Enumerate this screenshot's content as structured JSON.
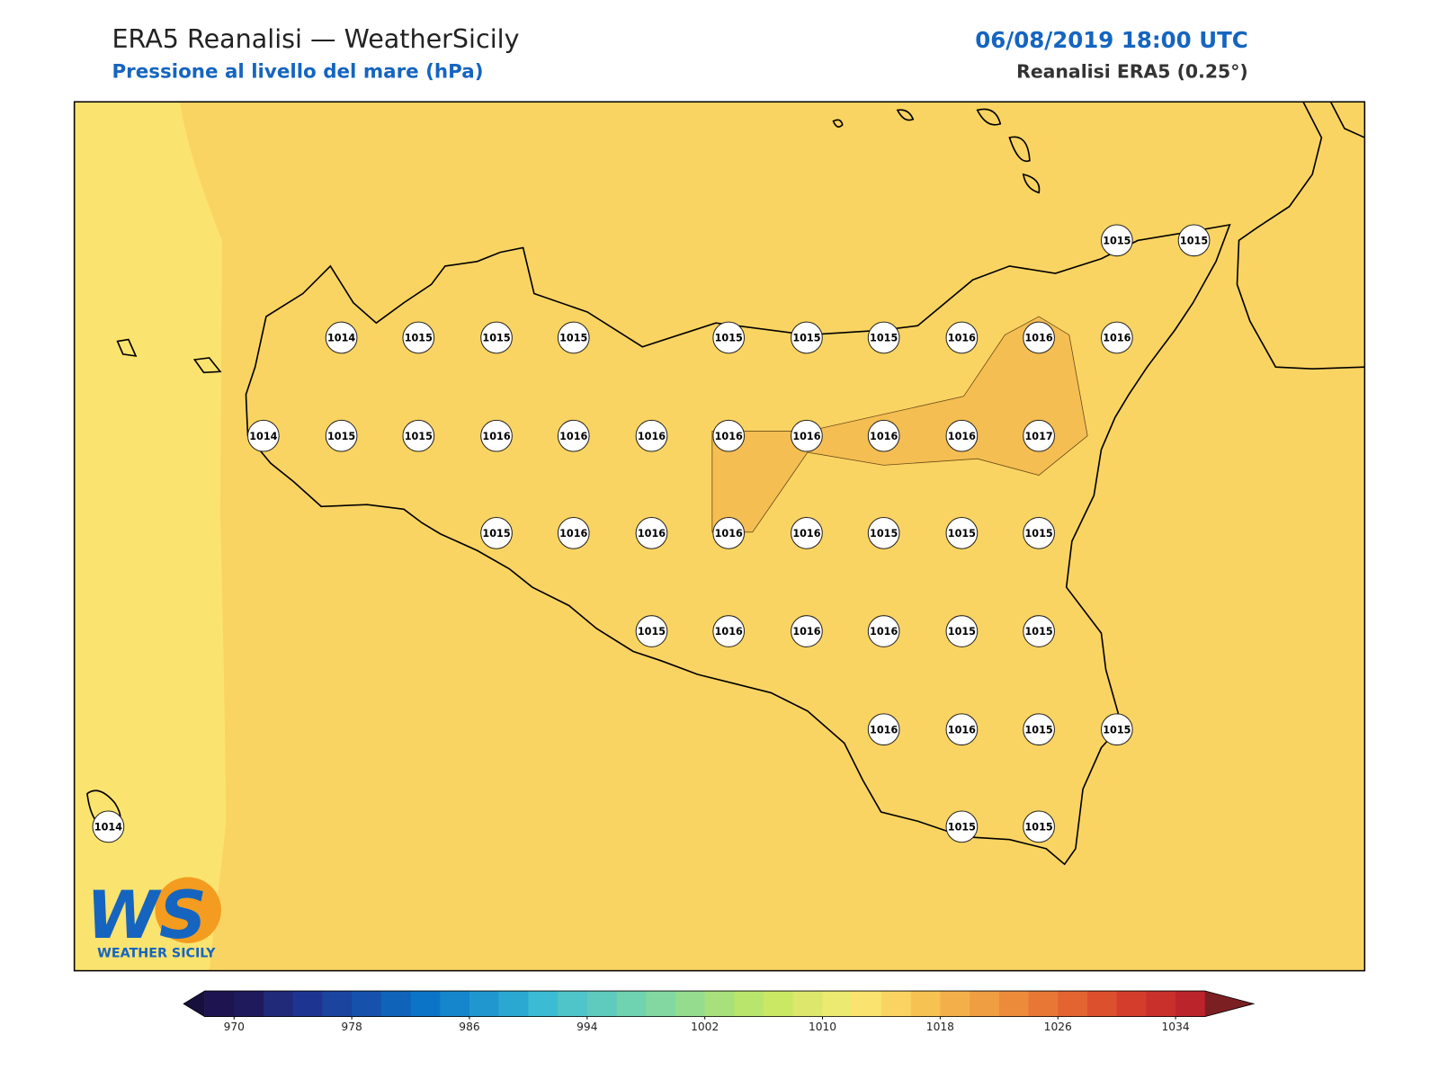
{
  "header": {
    "title": "ERA5 Reanalisi — WeatherSicily",
    "subtitle": "Pressione al livello del mare (hPa)",
    "datetime": "06/08/2019 18:00 UTC",
    "source": "Reanalisi ERA5 (0.25°)"
  },
  "map": {
    "background_color": "#fad462",
    "west_band_color": "#fbe36f",
    "high_area_color": "#f4be52",
    "station_values": [
      1015,
      1015,
      1014,
      1015,
      1015,
      1015,
      1015,
      1015,
      1015,
      1016,
      1016,
      1016,
      1014,
      1015,
      1015,
      1016,
      1016,
      1016,
      1016,
      1016,
      1016,
      1016,
      1017,
      1015,
      1016,
      1016,
      1016,
      1016,
      1015,
      1015,
      1015,
      1015,
      1016,
      1016,
      1016,
      1015,
      1015,
      1016,
      1016,
      1015,
      1015,
      1014,
      1015,
      1015
    ]
  },
  "colorbar": {
    "clim": [
      968,
      1036
    ],
    "ticks": [
      970,
      978,
      986,
      994,
      1002,
      1010,
      1018,
      1026,
      1034
    ],
    "colors": [
      "#1e1450",
      "#1f1a5c",
      "#212a78",
      "#1d3590",
      "#1a449e",
      "#1652ac",
      "#0f63b8",
      "#0b74c6",
      "#1585cc",
      "#2197d0",
      "#2ba8d2",
      "#3bbcd3",
      "#4fc5c9",
      "#5fcbbe",
      "#6fd2b0",
      "#82d8a0",
      "#95dc8e",
      "#a8e07c",
      "#bae56c",
      "#cbe865",
      "#dce86c",
      "#ecea70",
      "#fbe36f",
      "#fad462",
      "#f6c352",
      "#f3b04a",
      "#f09e42",
      "#ec8c3b",
      "#e87736",
      "#e36331",
      "#dc502e",
      "#d43d2c",
      "#c92f2b",
      "#bb242a"
    ],
    "under_color": "#17103d",
    "over_color": "#7c1f22"
  },
  "logo": {
    "mark": "WS",
    "name": "WEATHER SICILY"
  }
}
